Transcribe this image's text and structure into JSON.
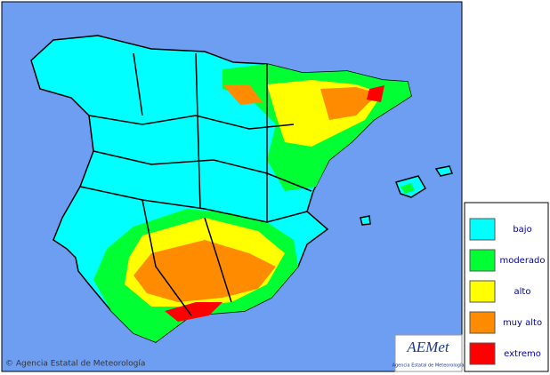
{
  "map": {
    "copyright": "© Agencia Estatal de Meteorología",
    "logo": {
      "text": "AEMet",
      "subtitle": "Agencia Estatal de Meteorología"
    },
    "legend": [
      {
        "label": "bajo",
        "color": "#00ffff"
      },
      {
        "label": "moderado",
        "color": "#00ff33"
      },
      {
        "label": "alto",
        "color": "#ffff00"
      },
      {
        "label": "muy alto",
        "color": "#ff8c00"
      },
      {
        "label": "extremo",
        "color": "#ff0000"
      }
    ]
  }
}
